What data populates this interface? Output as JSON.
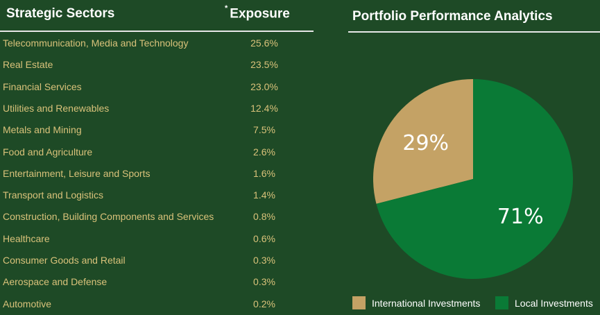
{
  "left": {
    "title": "Strategic Sectors",
    "exposure_marker": "*",
    "exposure_label": "Exposure"
  },
  "sectors": [
    {
      "name": "Telecommunication, Media and Technology",
      "value": "25.6%"
    },
    {
      "name": "Real Estate",
      "value": "23.5%"
    },
    {
      "name": "Financial Services",
      "value": "23.0%"
    },
    {
      "name": "Utilities and Renewables",
      "value": "12.4%"
    },
    {
      "name": "Metals and Mining",
      "value": "7.5%"
    },
    {
      "name": "Food and Agriculture",
      "value": "2.6%"
    },
    {
      "name": "Entertainment, Leisure and Sports",
      "value": "1.6%"
    },
    {
      "name": "Transport and Logistics",
      "value": "1.4%"
    },
    {
      "name": "Construction, Building Components and Services",
      "value": "0.8%"
    },
    {
      "name": "Healthcare",
      "value": "0.6%"
    },
    {
      "name": "Consumer Goods and Retail",
      "value": "0.3%"
    },
    {
      "name": "Aerospace and Defense",
      "value": "0.3%"
    },
    {
      "name": "Automotive",
      "value": "0.2%"
    }
  ],
  "colors": {
    "background": "#1e4a26",
    "text_gold": "#d9c27a",
    "international": "#c4a265",
    "local": "#0a7a36"
  },
  "chart_data": {
    "type": "pie",
    "title": "Portfolio Performance Analytics",
    "labels": [
      "International Investments",
      "Local Investments"
    ],
    "values": [
      29,
      71
    ],
    "value_labels": [
      "29%",
      "71%"
    ],
    "colors": [
      "#c4a265",
      "#0a7a36"
    ],
    "legend": "bottom"
  }
}
